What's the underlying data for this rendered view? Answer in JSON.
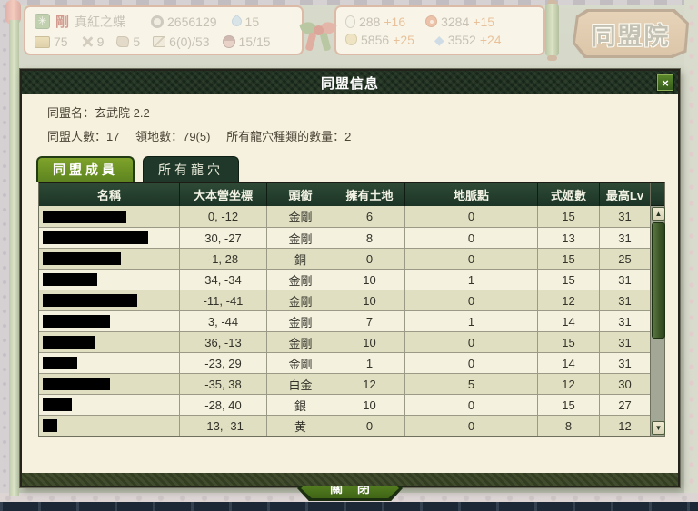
{
  "hud": {
    "player": {
      "rank": "剛",
      "name": "真紅之蝶"
    },
    "left": {
      "coins": "2656129",
      "water": "15",
      "gold": "75",
      "swords": "9",
      "leather": "5",
      "cards": "6(0)/53",
      "hime": "15/15"
    },
    "right": {
      "silver": "288",
      "silver_delta": "+16",
      "conch": "3284",
      "conch_delta": "+15",
      "horn": "5856",
      "horn_delta": "+25",
      "crystal": "3552",
      "crystal_delta": "+24"
    },
    "banner": "同盟院"
  },
  "dialog": {
    "title": "同盟信息",
    "close_x": "×",
    "info": {
      "alliance_name": "同盟名：玄武院 2.2",
      "members": "同盟人數：17",
      "territories": "領地數：79(5)",
      "dragon_caves": "所有龍穴種類的數量：2"
    },
    "tabs": [
      {
        "label": "同盟成員"
      },
      {
        "label": "所有龍穴"
      }
    ],
    "table": {
      "columns": [
        "名稱",
        "大本營坐標",
        "頭銜",
        "擁有土地",
        "地脈點",
        "式姬數",
        "最高Lv"
      ],
      "scroll_up": "▲",
      "scroll_down": "▼",
      "rows": [
        {
          "redact": 92,
          "coords": "0, -12",
          "title": "金剛",
          "land": "6",
          "ley": "0",
          "hime": "15",
          "lv": "31"
        },
        {
          "redact": 116,
          "coords": "30, -27",
          "title": "金剛",
          "land": "8",
          "ley": "0",
          "hime": "13",
          "lv": "31"
        },
        {
          "redact": 86,
          "coords": "-1, 28",
          "title": "銅",
          "land": "0",
          "ley": "0",
          "hime": "15",
          "lv": "25"
        },
        {
          "redact": 60,
          "coords": "34, -34",
          "title": "金剛",
          "land": "10",
          "ley": "1",
          "hime": "15",
          "lv": "31"
        },
        {
          "redact": 104,
          "coords": "-11, -41",
          "title": "金剛",
          "land": "10",
          "ley": "0",
          "hime": "12",
          "lv": "31"
        },
        {
          "redact": 74,
          "coords": "3, -44",
          "title": "金剛",
          "land": "7",
          "ley": "1",
          "hime": "14",
          "lv": "31"
        },
        {
          "redact": 58,
          "coords": "36, -13",
          "title": "金剛",
          "land": "10",
          "ley": "0",
          "hime": "15",
          "lv": "31"
        },
        {
          "redact": 38,
          "coords": "-23, 29",
          "title": "金剛",
          "land": "1",
          "ley": "0",
          "hime": "14",
          "lv": "31"
        },
        {
          "redact": 74,
          "coords": "-35, 38",
          "title": "白金",
          "land": "12",
          "ley": "5",
          "hime": "12",
          "lv": "30"
        },
        {
          "redact": 32,
          "coords": "-28, 40",
          "title": "銀",
          "land": "10",
          "ley": "0",
          "hime": "15",
          "lv": "27"
        },
        {
          "redact": 16,
          "coords": "-13, -31",
          "title": "黄",
          "land": "0",
          "ley": "0",
          "hime": "8",
          "lv": "12"
        }
      ]
    },
    "close_button": "關 閉"
  },
  "colors": {
    "accent_green": "#5d8420",
    "dark_green": "#1c3426",
    "delta_orange": "#d9914e",
    "row_dark": "#e0dfc2",
    "row_light": "#f4f1de"
  }
}
